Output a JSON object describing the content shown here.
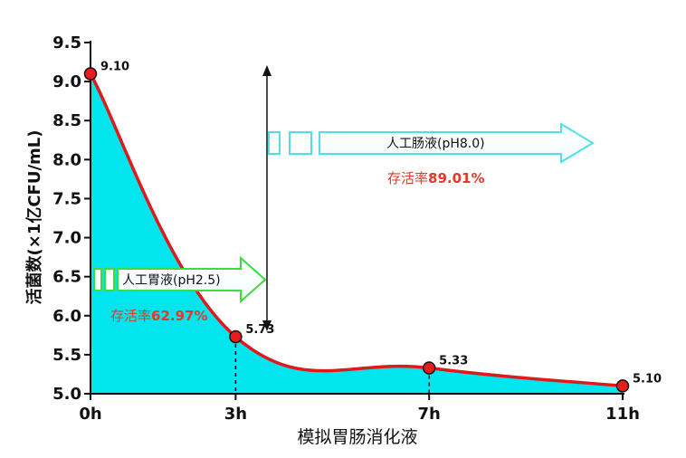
{
  "chart_data": {
    "type": "area",
    "x_categories": [
      "0h",
      "3h",
      "7h",
      "11h"
    ],
    "x_values": [
      0,
      3,
      7,
      11
    ],
    "series": [
      {
        "values": [
          9.1,
          5.73,
          5.33,
          5.1
        ]
      }
    ],
    "point_labels": [
      "9.10",
      "5.73",
      "5.33",
      "5.10"
    ],
    "xlabel": "模拟胃肠消化液",
    "ylabel": "活菌数(×1亿CFU/mL)",
    "ylim": [
      5.0,
      9.5
    ],
    "yticks": [
      "5.0",
      "5.5",
      "6.0",
      "6.5",
      "7.0",
      "7.5",
      "8.0",
      "8.5",
      "9.0",
      "9.5"
    ],
    "ytick_values": [
      5.0,
      5.5,
      6.0,
      6.5,
      7.0,
      7.5,
      8.0,
      8.5,
      9.0,
      9.5
    ],
    "grid": false,
    "annotations": [
      {
        "stage": "人工胃液(pH2.5)",
        "survival_label": "存活率",
        "survival_value": "62.97%"
      },
      {
        "stage": "人工肠液(pH8.0)",
        "survival_label": "存活率",
        "survival_value": "89.01%"
      }
    ],
    "colors": {
      "fill": "#00e5ee",
      "line": "#e0191b",
      "marker": "#e81c1c",
      "survival_text": "#e03a2a",
      "arrow_edge": "#4ee0e8",
      "arrow_edge_green": "#3ddc3d"
    }
  }
}
